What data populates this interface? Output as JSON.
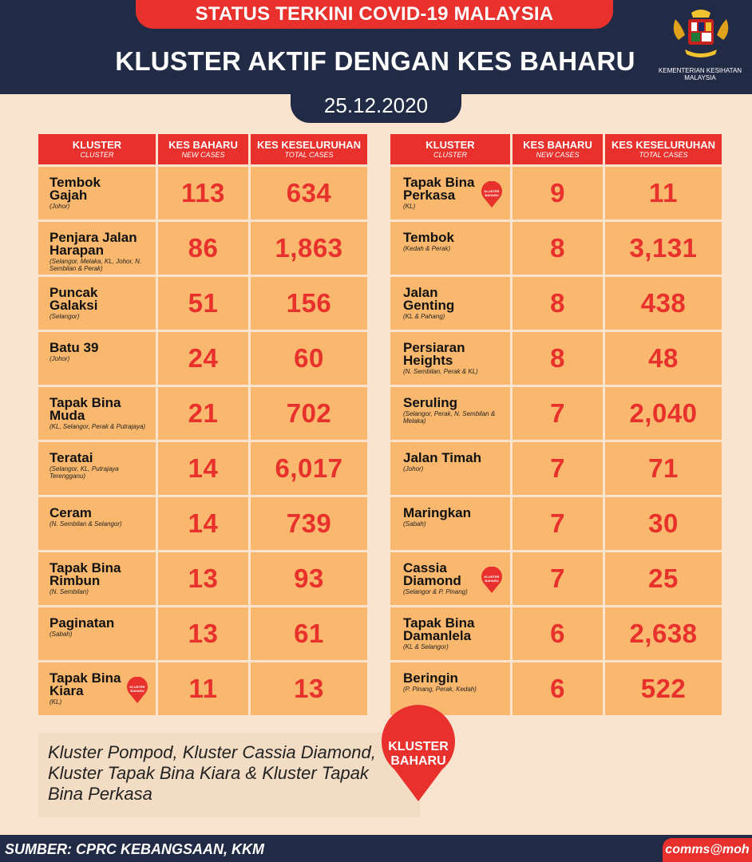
{
  "header": {
    "status_banner": "STATUS TERKINI COVID-19 MALAYSIA",
    "title": "KLUSTER AKTIF DENGAN KES BAHARU",
    "date": "25.12.2020",
    "ministry_line1": "KEMENTERIAN KESIHATAN",
    "ministry_line2": "MALAYSIA"
  },
  "columns": {
    "cluster": "KLUSTER",
    "cluster_sub": "CLUSTER",
    "new_cases": "KES BAHARU",
    "new_cases_sub": "NEW CASES",
    "total_cases": "KES KESELURUHAN",
    "total_cases_sub": "TOTAL CASES"
  },
  "badge_text": {
    "line1": "KLUSTER",
    "line2": "BAHARU"
  },
  "left_rows": [
    {
      "name": "Tembok Gajah",
      "location": "(Johor)",
      "new": "113",
      "total": "634",
      "new_badge": false
    },
    {
      "name": "Penjara Jalan Harapan",
      "location": "(Selangor, Melaka, KL, Johor, N. Sembilan & Perak)",
      "new": "86",
      "total": "1,863",
      "new_badge": false
    },
    {
      "name": "Puncak Galaksi",
      "location": "(Selangor)",
      "new": "51",
      "total": "156",
      "new_badge": false
    },
    {
      "name": "Batu 39",
      "location": "(Johor)",
      "new": "24",
      "total": "60",
      "new_badge": false
    },
    {
      "name": "Tapak Bina Muda",
      "location": "(KL, Selangor, Perak & Putrajaya)",
      "new": "21",
      "total": "702",
      "new_badge": false
    },
    {
      "name": "Teratai",
      "location": "(Selangor, KL, Putrajaya Terengganu)",
      "new": "14",
      "total": "6,017",
      "new_badge": false
    },
    {
      "name": "Ceram",
      "location": "(N. Sembilan & Selangor)",
      "new": "14",
      "total": "739",
      "new_badge": false
    },
    {
      "name": "Tapak Bina Rimbun",
      "location": "(N. Sembilan)",
      "new": "13",
      "total": "93",
      "new_badge": false
    },
    {
      "name": "Paginatan",
      "location": "(Sabah)",
      "new": "13",
      "total": "61",
      "new_badge": false
    },
    {
      "name": "Tapak Bina Kiara",
      "location": "(KL)",
      "new": "11",
      "total": "13",
      "new_badge": true
    }
  ],
  "right_rows": [
    {
      "name": "Tapak Bina Perkasa",
      "location": "(KL)",
      "new": "9",
      "total": "11",
      "new_badge": true
    },
    {
      "name": "Tembok",
      "location": "(Kedah & Perak)",
      "new": "8",
      "total": "3,131",
      "new_badge": false
    },
    {
      "name": "Jalan Genting",
      "location": "(KL & Pahang)",
      "new": "8",
      "total": "438",
      "new_badge": false
    },
    {
      "name": "Persiaran Heights",
      "location": "(N. Sembilan, Perak & KL)",
      "new": "8",
      "total": "48",
      "new_badge": false
    },
    {
      "name": "Seruling",
      "location": "(Selangor, Perak, N. Sembilan & Melaka)",
      "new": "7",
      "total": "2,040",
      "new_badge": false
    },
    {
      "name": "Jalan Timah",
      "location": "(Johor)",
      "new": "7",
      "total": "71",
      "new_badge": false
    },
    {
      "name": "Maringkan",
      "location": "(Sabah)",
      "new": "7",
      "total": "30",
      "new_badge": false
    },
    {
      "name": "Cassia Diamond",
      "location": "(Selangor & P. Pinang)",
      "new": "7",
      "total": "25",
      "new_badge": true
    },
    {
      "name": "Tapak Bina Damanlela",
      "location": "(KL & Selangor)",
      "new": "6",
      "total": "2,638",
      "new_badge": false
    },
    {
      "name": "Beringin",
      "location": "(P. Pinang, Perak, Kedah)",
      "new": "6",
      "total": "522",
      "new_badge": false
    }
  ],
  "footnote": "Kluster Pompod, Kluster Cassia Diamond, Kluster Tapak Bina Kiara & Kluster Tapak Bina Perkasa",
  "footer": {
    "source": "SUMBER: CPRC KEBANGSAAN, KKM",
    "handle": "comms@moh"
  },
  "colors": {
    "navy": "#222b45",
    "red": "#e8302c",
    "cell": "#f9b86d",
    "background": "#fbe4cf"
  }
}
